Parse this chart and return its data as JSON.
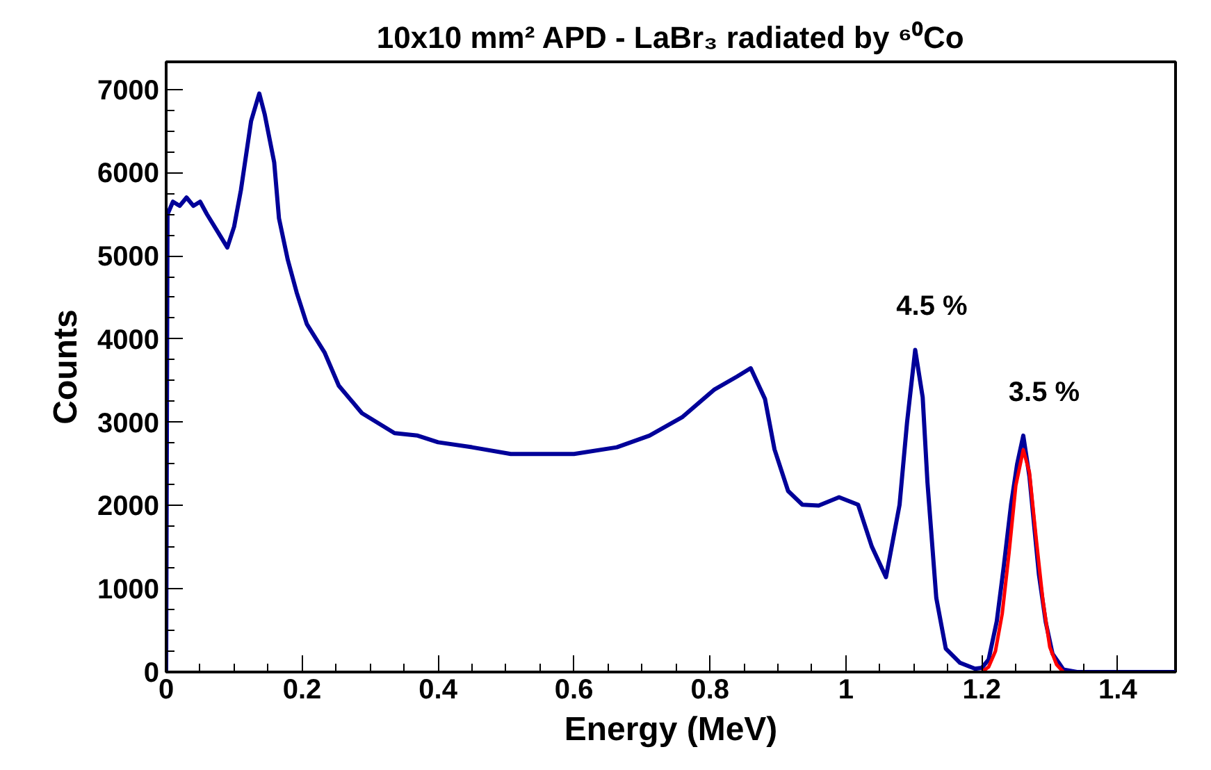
{
  "chart_data": {
    "type": "line",
    "title": "10x10 mm² APD - LaBr₃ radiated by ⁶⁰Co",
    "xlabel": "Energy (MeV)",
    "ylabel": "Counts",
    "xlim": [
      0,
      1.485
    ],
    "ylim": [
      0,
      7330
    ],
    "xticks": [
      0,
      0.2,
      0.4,
      0.6,
      0.8,
      1,
      1.2,
      1.4
    ],
    "yticks": [
      0,
      1000,
      2000,
      3000,
      4000,
      5000,
      6000,
      7000
    ],
    "grid": false,
    "marker": "none",
    "line_style": "solid",
    "series": [
      {
        "color": "#000099",
        "x": [
          0,
          0.002,
          0.01,
          0.02,
          0.03,
          0.04,
          0.05,
          0.06,
          0.075,
          0.09,
          0.1,
          0.11,
          0.125,
          0.137,
          0.145,
          0.159,
          0.166,
          0.179,
          0.192,
          0.207,
          0.233,
          0.254,
          0.288,
          0.336,
          0.37,
          0.4,
          0.45,
          0.507,
          0.55,
          0.6,
          0.663,
          0.711,
          0.759,
          0.806,
          0.84,
          0.86,
          0.881,
          0.895,
          0.915,
          0.936,
          0.96,
          0.99,
          1.018,
          1.038,
          1.059,
          1.079,
          1.09,
          1.102,
          1.113,
          1.12,
          1.133,
          1.147,
          1.168,
          1.19,
          1.2,
          1.21,
          1.222,
          1.232,
          1.243,
          1.252,
          1.261,
          1.27,
          1.284,
          1.294,
          1.304,
          1.32,
          1.34,
          1.485
        ],
        "values": [
          0,
          5500,
          5650,
          5600,
          5700,
          5600,
          5650,
          5500,
          5300,
          5100,
          5350,
          5790,
          6620,
          6950,
          6700,
          6120,
          5450,
          4950,
          4560,
          4180,
          3840,
          3440,
          3110,
          2870,
          2840,
          2760,
          2700,
          2620,
          2620,
          2620,
          2700,
          2840,
          3060,
          3390,
          3550,
          3650,
          3280,
          2675,
          2175,
          2010,
          2000,
          2100,
          2010,
          1510,
          1140,
          2010,
          3000,
          3870,
          3300,
          2280,
          890,
          280,
          110,
          40,
          50,
          150,
          610,
          1250,
          2010,
          2500,
          2840,
          2350,
          1170,
          600,
          220,
          30,
          0,
          0
        ]
      },
      {
        "color": "#ff0000",
        "x": [
          1.2,
          1.21,
          1.22,
          1.23,
          1.24,
          1.25,
          1.261,
          1.27,
          1.28,
          1.29,
          1.3,
          1.31,
          1.32
        ],
        "values": [
          0,
          60,
          250,
          700,
          1430,
          2240,
          2670,
          2400,
          1600,
          850,
          300,
          90,
          0
        ]
      }
    ],
    "annotations": [
      {
        "text": "4.5 %",
        "x": 1.102,
        "y": 3870
      },
      {
        "text": "3.5 %",
        "x": 1.261,
        "y": 2840
      }
    ]
  }
}
